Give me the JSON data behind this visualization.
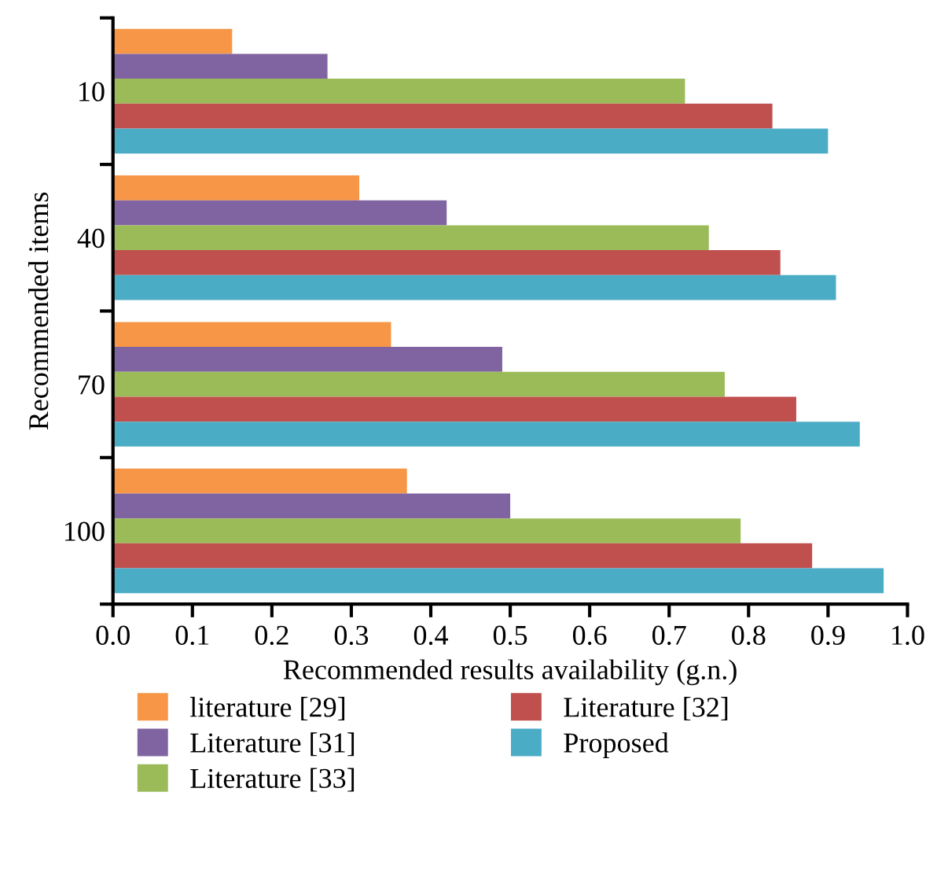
{
  "chart_data": {
    "type": "bar",
    "orientation": "horizontal",
    "xlabel": "Recommended results availability (g.n.)",
    "ylabel": "Recommended items",
    "categories": [
      "10",
      "40",
      "70",
      "100"
    ],
    "series": [
      {
        "name": "literature [29]",
        "color": "#f79646",
        "values": [
          0.15,
          0.31,
          0.35,
          0.37
        ]
      },
      {
        "name": "Literature [31]",
        "color": "#8064a2",
        "values": [
          0.27,
          0.42,
          0.49,
          0.5
        ]
      },
      {
        "name": "Literature [33]",
        "color": "#9bbb59",
        "values": [
          0.72,
          0.75,
          0.77,
          0.79
        ]
      },
      {
        "name": "Literature [32]",
        "color": "#c0504d",
        "values": [
          0.83,
          0.84,
          0.86,
          0.88
        ]
      },
      {
        "name": "Proposed",
        "color": "#4bacc6",
        "values": [
          0.9,
          0.91,
          0.94,
          0.97
        ]
      }
    ],
    "xlim": [
      0.0,
      1.0
    ],
    "xticks": [
      {
        "value": 0,
        "label": "0.0"
      },
      0.1,
      0.2,
      0.3,
      0.4,
      0.5,
      0.6,
      0.7,
      0.8,
      0.9,
      {
        "value": 1,
        "label": "1.0"
      }
    ],
    "grid": false,
    "legend": "bottom"
  }
}
